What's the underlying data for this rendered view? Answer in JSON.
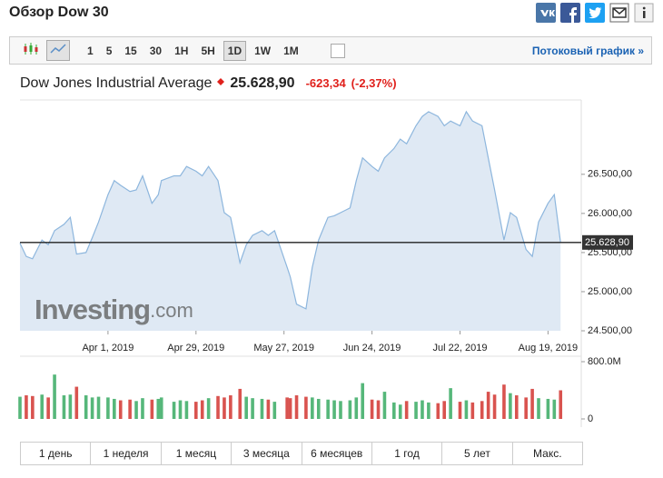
{
  "header": {
    "title": "Обзор Dow 30"
  },
  "toolbar": {
    "intervals": [
      "1",
      "5",
      "15",
      "30",
      "1H",
      "5H",
      "1D",
      "1W",
      "1M"
    ],
    "active": 6,
    "streaming": "Потоковый график »"
  },
  "quote": {
    "name": "Dow Jones Industrial Average",
    "change": "-623,34",
    "change_pct": "(-2,37%)"
  },
  "chart_data": [
    {
      "type": "area",
      "color": "#8db6dd",
      "fill": "#dfe9f4",
      "watermark": [
        "Investing",
        ".com"
      ],
      "last_value": 25628.9,
      "last_value_label": "25.628,90",
      "x": [
        "2019-03-04",
        "2019-03-06",
        "2019-03-08",
        "2019-03-11",
        "2019-03-13",
        "2019-03-15",
        "2019-03-18",
        "2019-03-20",
        "2019-03-22",
        "2019-03-25",
        "2019-03-27",
        "2019-03-29",
        "2019-04-01",
        "2019-04-03",
        "2019-04-05",
        "2019-04-08",
        "2019-04-10",
        "2019-04-12",
        "2019-04-15",
        "2019-04-17",
        "2019-04-18",
        "2019-04-22",
        "2019-04-24",
        "2019-04-26",
        "2019-04-29",
        "2019-05-01",
        "2019-05-03",
        "2019-05-06",
        "2019-05-08",
        "2019-05-10",
        "2019-05-13",
        "2019-05-15",
        "2019-05-17",
        "2019-05-20",
        "2019-05-22",
        "2019-05-24",
        "2019-05-28",
        "2019-05-29",
        "2019-05-31",
        "2019-06-03",
        "2019-06-05",
        "2019-06-07",
        "2019-06-10",
        "2019-06-12",
        "2019-06-14",
        "2019-06-17",
        "2019-06-19",
        "2019-06-21",
        "2019-06-24",
        "2019-06-26",
        "2019-06-28",
        "2019-07-01",
        "2019-07-03",
        "2019-07-05",
        "2019-07-08",
        "2019-07-10",
        "2019-07-12",
        "2019-07-15",
        "2019-07-17",
        "2019-07-19",
        "2019-07-22",
        "2019-07-24",
        "2019-07-26",
        "2019-07-29",
        "2019-07-31",
        "2019-08-02",
        "2019-08-05",
        "2019-08-07",
        "2019-08-09",
        "2019-08-12",
        "2019-08-14",
        "2019-08-16",
        "2019-08-19",
        "2019-08-21",
        "2019-08-23"
      ],
      "values": [
        25620,
        25450,
        25420,
        25660,
        25600,
        25780,
        25860,
        25950,
        25480,
        25500,
        25690,
        25890,
        26240,
        26420,
        26360,
        26280,
        26300,
        26480,
        26130,
        26240,
        26420,
        26480,
        26480,
        26600,
        26540,
        26480,
        26600,
        26420,
        26010,
        25950,
        25370,
        25600,
        25720,
        25780,
        25720,
        25780,
        25310,
        25190,
        24840,
        24780,
        25310,
        25660,
        25950,
        25970,
        26010,
        26070,
        26420,
        26710,
        26600,
        26540,
        26710,
        26830,
        26950,
        26890,
        27120,
        27240,
        27300,
        27240,
        27120,
        27180,
        27120,
        27300,
        27180,
        27120,
        26710,
        26300,
        25660,
        26010,
        25950,
        25540,
        25450,
        25890,
        26130,
        26240,
        25628.9
      ],
      "xlim": [
        "2019-03-04",
        "2019-08-29"
      ],
      "xticks": [
        {
          "value": "2019-04-01",
          "label": "Apr 1, 2019"
        },
        {
          "value": "2019-04-29",
          "label": "Apr 29, 2019"
        },
        {
          "value": "2019-05-27",
          "label": "May 27, 2019"
        },
        {
          "value": "2019-06-24",
          "label": "Jun 24, 2019"
        },
        {
          "value": "2019-07-22",
          "label": "Jul 22, 2019"
        },
        {
          "value": "2019-08-19",
          "label": "Aug 19, 2019"
        }
      ],
      "ylim": [
        24500,
        27450
      ],
      "yticks": [
        {
          "value": 24500,
          "label": "24.500,00"
        },
        {
          "value": 25000,
          "label": "25.000,00"
        },
        {
          "value": 25500,
          "label": "25.500,00"
        },
        {
          "value": 26000,
          "label": "26.000,00"
        },
        {
          "value": 26500,
          "label": "26.500,00"
        }
      ]
    },
    {
      "type": "bar",
      "up_color": "#56b77a",
      "down_color": "#d9534f",
      "values": [
        310000000,
        330000000,
        320000000,
        340000000,
        300000000,
        620000000,
        330000000,
        340000000,
        450000000,
        330000000,
        300000000,
        310000000,
        300000000,
        280000000,
        260000000,
        270000000,
        250000000,
        290000000,
        270000000,
        280000000,
        300000000,
        240000000,
        260000000,
        250000000,
        240000000,
        260000000,
        290000000,
        320000000,
        300000000,
        330000000,
        420000000,
        310000000,
        290000000,
        280000000,
        270000000,
        240000000,
        300000000,
        290000000,
        330000000,
        310000000,
        300000000,
        280000000,
        270000000,
        260000000,
        250000000,
        260000000,
        300000000,
        500000000,
        270000000,
        260000000,
        380000000,
        230000000,
        200000000,
        250000000,
        240000000,
        260000000,
        230000000,
        220000000,
        250000000,
        430000000,
        240000000,
        260000000,
        230000000,
        250000000,
        380000000,
        340000000,
        480000000,
        360000000,
        330000000,
        300000000,
        420000000,
        290000000,
        280000000,
        270000000,
        400000000
      ],
      "ylim": [
        0,
        800000000
      ],
      "yticks": [
        0,
        {
          "value": 800000000,
          "label": "800.0M"
        }
      ]
    }
  ],
  "periods": [
    "1 день",
    "1 неделя",
    "1 месяц",
    "3 месяца",
    "6 месяцев",
    "1 год",
    "5 лет",
    "Макс."
  ]
}
